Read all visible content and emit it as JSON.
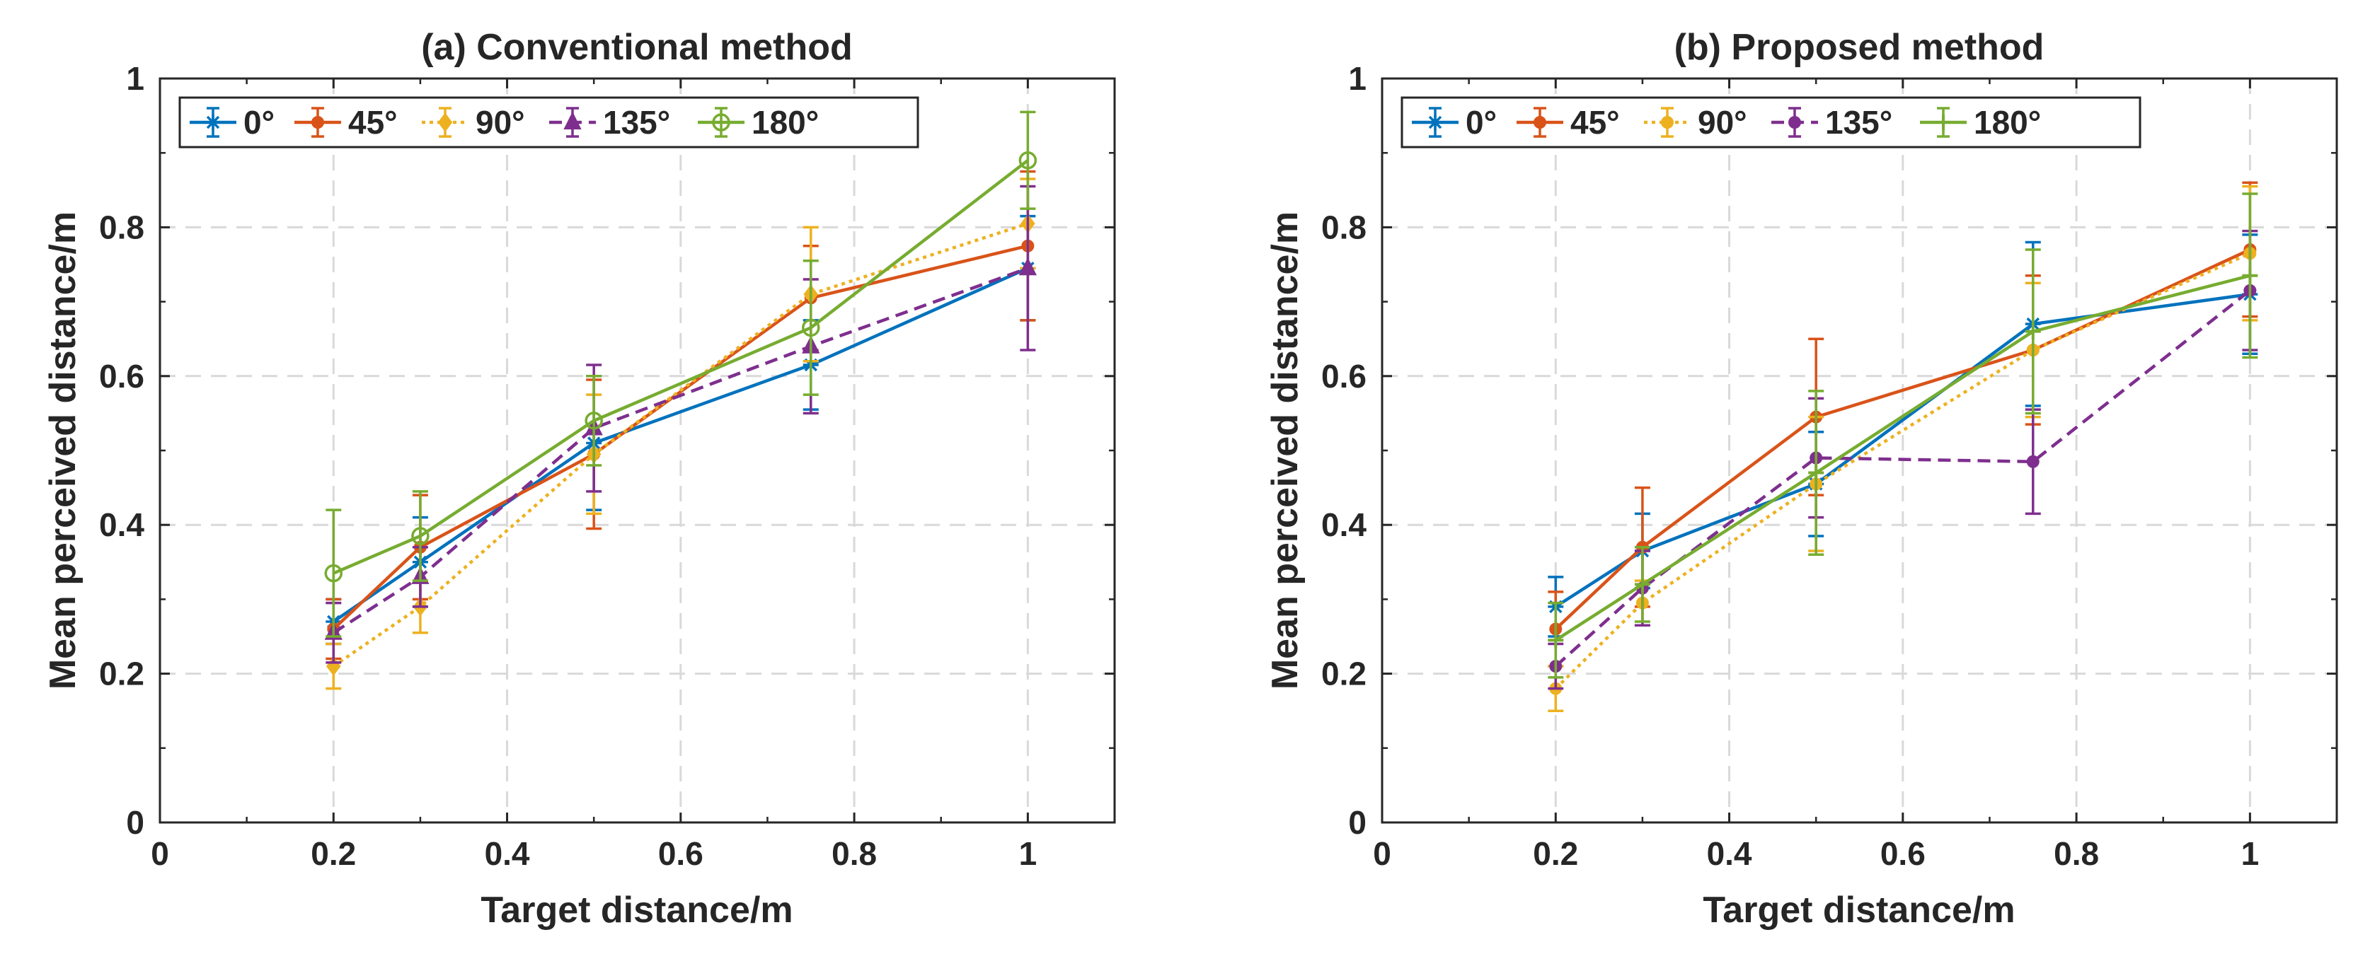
{
  "chart_data": [
    {
      "type": "line",
      "title": "(a) Conventional method",
      "xlabel": "Target distance/m",
      "ylabel": "Mean perceived distance/m",
      "xlim": [
        0,
        1.1
      ],
      "ylim": [
        0,
        1
      ],
      "xticks": [
        0,
        0.2,
        0.4,
        0.6,
        0.8,
        1
      ],
      "xtick_labels": [
        "0",
        "0.2",
        "0.4",
        "0.6",
        "0.8",
        "1"
      ],
      "yticks": [
        0,
        0.2,
        0.4,
        0.6,
        0.8,
        1
      ],
      "ytick_labels": [
        "0",
        "0.2",
        "0.4",
        "0.6",
        "0.8",
        "1"
      ],
      "grid": true,
      "legend_position": "top-left",
      "x": [
        0.2,
        0.3,
        0.5,
        0.75,
        1.0
      ],
      "series": [
        {
          "name": "0°",
          "values": [
            0.27,
            0.35,
            0.51,
            0.615,
            0.745
          ],
          "errors": [
            0.03,
            0.06,
            0.09,
            0.06,
            0.07
          ]
        },
        {
          "name": "45°",
          "values": [
            0.26,
            0.37,
            0.495,
            0.705,
            0.775
          ],
          "errors": [
            0.04,
            0.07,
            0.1,
            0.07,
            0.1
          ]
        },
        {
          "name": "90°",
          "values": [
            0.21,
            0.29,
            0.495,
            0.71,
            0.805
          ],
          "errors": [
            0.03,
            0.035,
            0.08,
            0.09,
            0.06
          ]
        },
        {
          "name": "135°",
          "values": [
            0.255,
            0.33,
            0.53,
            0.64,
            0.745
          ],
          "errors": [
            0.04,
            0.04,
            0.085,
            0.09,
            0.11
          ]
        },
        {
          "name": "180°",
          "values": [
            0.335,
            0.385,
            0.54,
            0.665,
            0.89
          ],
          "errors": [
            0.085,
            0.06,
            0.06,
            0.09,
            0.065
          ]
        }
      ]
    },
    {
      "type": "line",
      "title": "(b) Proposed method",
      "xlabel": "Target distance/m",
      "ylabel": "Mean perceived distance/m",
      "xlim": [
        0,
        1.1
      ],
      "ylim": [
        0,
        1
      ],
      "xticks": [
        0,
        0.2,
        0.4,
        0.6,
        0.8,
        1
      ],
      "xtick_labels": [
        "0",
        "0.2",
        "0.4",
        "0.6",
        "0.8",
        "1"
      ],
      "yticks": [
        0,
        0.2,
        0.4,
        0.6,
        0.8,
        1
      ],
      "ytick_labels": [
        "0",
        "0.2",
        "0.4",
        "0.6",
        "0.8",
        "1"
      ],
      "grid": true,
      "legend_position": "top-left",
      "x": [
        0.2,
        0.3,
        0.5,
        0.75,
        1.0
      ],
      "series": [
        {
          "name": "0°",
          "values": [
            0.29,
            0.365,
            0.455,
            0.67,
            0.71
          ],
          "errors": [
            0.04,
            0.05,
            0.07,
            0.11,
            0.08
          ]
        },
        {
          "name": "45°",
          "values": [
            0.26,
            0.37,
            0.545,
            0.635,
            0.77
          ],
          "errors": [
            0.05,
            0.08,
            0.105,
            0.1,
            0.09
          ]
        },
        {
          "name": "90°",
          "values": [
            0.18,
            0.295,
            0.455,
            0.635,
            0.765
          ],
          "errors": [
            0.03,
            0.03,
            0.09,
            0.09,
            0.09
          ]
        },
        {
          "name": "135°",
          "values": [
            0.21,
            0.315,
            0.49,
            0.485,
            0.715
          ],
          "errors": [
            0.03,
            0.05,
            0.08,
            0.07,
            0.08
          ]
        },
        {
          "name": "180°",
          "values": [
            0.245,
            0.32,
            0.47,
            0.66,
            0.735
          ],
          "errors": [
            0.05,
            0.05,
            0.11,
            0.11,
            0.11
          ]
        }
      ]
    }
  ],
  "series_styles": [
    {
      "color": "#0072BD",
      "dash": "solid",
      "marker": "star"
    },
    {
      "color": "#D95319",
      "dash": "solid",
      "marker": "dot"
    },
    {
      "color": "#EDB120",
      "dash": "dotted",
      "marker": "diamond"
    },
    {
      "color": "#7E2F8E",
      "dash": "dashed",
      "marker": "triangle"
    },
    {
      "color": "#77AC30",
      "dash": "solid",
      "marker": "circle"
    }
  ],
  "series_styles_b": [
    {
      "color": "#0072BD",
      "dash": "solid",
      "marker": "star"
    },
    {
      "color": "#D95319",
      "dash": "solid",
      "marker": "dot"
    },
    {
      "color": "#EDB120",
      "dash": "dotted",
      "marker": "dot"
    },
    {
      "color": "#7E2F8E",
      "dash": "dashed",
      "marker": "dot"
    },
    {
      "color": "#77AC30",
      "dash": "solid",
      "marker": "plus"
    }
  ]
}
